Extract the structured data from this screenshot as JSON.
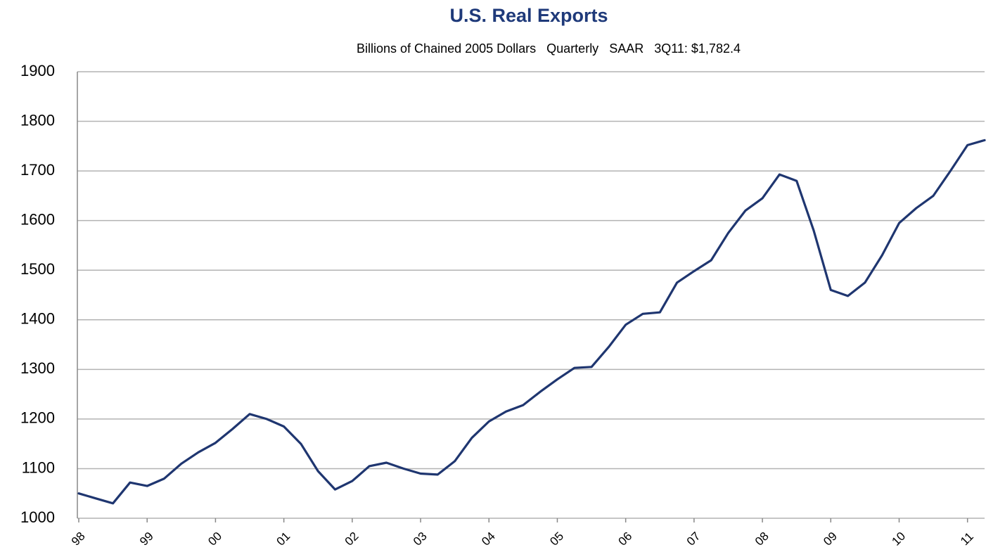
{
  "chart_data": {
    "type": "line",
    "title": "U.S. Real Exports",
    "subtitle": "Billions of Chained 2005 Dollars   Quarterly   SAAR   3Q11: $1,782.4",
    "categories": [
      "98",
      null,
      null,
      null,
      "99",
      null,
      null,
      null,
      "00",
      null,
      null,
      null,
      "01",
      null,
      null,
      null,
      "02",
      null,
      null,
      null,
      "03",
      null,
      null,
      null,
      "04",
      null,
      null,
      null,
      "05",
      null,
      null,
      null,
      "06",
      null,
      null,
      null,
      "07",
      null,
      null,
      null,
      "08",
      null,
      null,
      null,
      "09",
      null,
      null,
      null,
      "10",
      null,
      null,
      null,
      "11",
      null
    ],
    "series": [
      {
        "name": "U.S. Real Exports",
        "color": "#1f3670",
        "values": [
          1050,
          1040,
          1030,
          1072,
          1065,
          1080,
          1110,
          1133,
          1152,
          1180,
          1210,
          1200,
          1185,
          1150,
          1095,
          1058,
          1075,
          1105,
          1112,
          1100,
          1090,
          1088,
          1115,
          1162,
          1195,
          1215,
          1228,
          1255,
          1280,
          1303,
          1305,
          1345,
          1390,
          1412,
          1415,
          1475,
          1498,
          1520,
          1575,
          1620,
          1645,
          1693,
          1680,
          1580,
          1460,
          1448,
          1475,
          1530,
          1595,
          1625,
          1650,
          1700,
          1752,
          1762
        ]
      }
    ],
    "ylim": [
      1000,
      1900
    ],
    "yticks": [
      1000,
      1100,
      1200,
      1300,
      1400,
      1500,
      1600,
      1700,
      1800,
      1900
    ],
    "grid": true
  }
}
